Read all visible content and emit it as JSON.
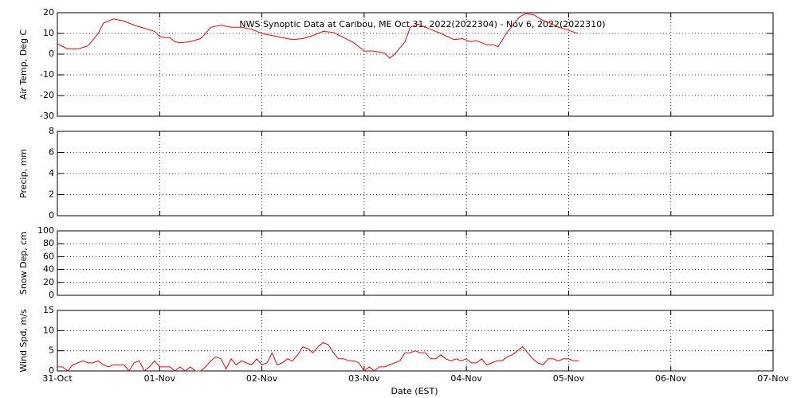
{
  "chart_data": [
    {
      "type": "line",
      "title": "NWS Synoptic Data at Caribou, ME   Oct 31, 2022(2022304) - Nov  6, 2022(2022310)",
      "ylabel": "Air Temp, Deg C",
      "ylim": [
        -30,
        20
      ],
      "yticks": [
        -30,
        -20,
        -10,
        0,
        10,
        20
      ],
      "grid": true,
      "color": "#ff0000",
      "x": [
        0,
        0.1,
        0.2,
        0.3,
        0.4,
        0.45,
        0.55,
        0.65,
        0.75,
        0.85,
        0.95,
        1.0,
        1.05,
        1.1,
        1.15,
        1.2,
        1.3,
        1.4,
        1.45,
        1.5,
        1.6,
        1.7,
        1.8,
        1.9,
        2.0,
        2.1,
        2.2,
        2.3,
        2.4,
        2.5,
        2.6,
        2.7,
        2.8,
        2.9,
        3.0,
        3.1,
        3.2,
        3.25,
        3.3,
        3.4,
        3.45,
        3.53,
        3.65,
        3.75,
        3.88,
        3.96,
        4.04,
        4.1,
        4.2,
        4.27,
        4.31,
        4.39,
        4.47,
        4.52,
        4.58,
        4.66,
        4.74,
        4.82,
        4.9,
        4.97,
        5.09
      ],
      "values": [
        5,
        2.5,
        2.5,
        4,
        10,
        15,
        17,
        16,
        14,
        12.5,
        11,
        8.5,
        8,
        8,
        6,
        5.5,
        6,
        7.5,
        10,
        13,
        14,
        13,
        13,
        12,
        10,
        9,
        8,
        7,
        7.5,
        9,
        11,
        10.5,
        8,
        5.5,
        1.5,
        1.5,
        0.5,
        -2,
        0,
        6,
        13,
        14.5,
        12,
        10,
        7,
        7.5,
        6,
        6.5,
        4.5,
        4.5,
        3.5,
        10,
        15,
        18,
        19.5,
        19,
        16.5,
        15,
        13,
        12,
        10
      ]
    },
    {
      "type": "line",
      "ylabel": "Precip, mm",
      "ylim": [
        0,
        8
      ],
      "yticks": [
        0,
        2,
        4,
        6,
        8
      ],
      "grid": true
    },
    {
      "type": "line",
      "ylabel": "Snow Dep, cm",
      "ylim": [
        0,
        100
      ],
      "yticks": [
        0,
        20,
        40,
        60,
        80,
        100
      ],
      "grid": true
    },
    {
      "type": "line",
      "ylabel": "Wind Spd, m/s",
      "ylim": [
        0,
        15
      ],
      "yticks": [
        0,
        5,
        10,
        15
      ],
      "grid": true,
      "color": "#ff0000",
      "xlabel": "Date (EST)",
      "xlim": [
        0,
        7
      ],
      "xticks": [
        {
          "value": 0,
          "label": "31-Oct"
        },
        {
          "value": 1,
          "label": "01-Nov"
        },
        {
          "value": 2,
          "label": "02-Nov"
        },
        {
          "value": 3,
          "label": "03-Nov"
        },
        {
          "value": 4,
          "label": "04-Nov"
        },
        {
          "value": 5,
          "label": "05-Nov"
        },
        {
          "value": 6,
          "label": "06-Nov"
        },
        {
          "value": 7,
          "label": "07-Nov"
        }
      ],
      "x": [
        0,
        0.05,
        0.1,
        0.15,
        0.2,
        0.25,
        0.3,
        0.35,
        0.4,
        0.45,
        0.5,
        0.55,
        0.6,
        0.65,
        0.7,
        0.75,
        0.8,
        0.85,
        0.9,
        0.95,
        1.0,
        1.05,
        1.1,
        1.15,
        1.2,
        1.25,
        1.3,
        1.35,
        1.4,
        1.45,
        1.5,
        1.55,
        1.6,
        1.65,
        1.7,
        1.75,
        1.8,
        1.85,
        1.9,
        1.95,
        2.0,
        2.05,
        2.1,
        2.15,
        2.2,
        2.25,
        2.3,
        2.35,
        2.4,
        2.45,
        2.5,
        2.55,
        2.6,
        2.65,
        2.7,
        2.75,
        2.8,
        2.85,
        2.9,
        2.95,
        3.0,
        3.05,
        3.1,
        3.15,
        3.2,
        3.25,
        3.3,
        3.35,
        3.4,
        3.45,
        3.5,
        3.55,
        3.6,
        3.65,
        3.7,
        3.75,
        3.8,
        3.85,
        3.9,
        3.95,
        4.0,
        4.05,
        4.1,
        4.15,
        4.2,
        4.25,
        4.3,
        4.35,
        4.4,
        4.45,
        4.5,
        4.55,
        4.6,
        4.65,
        4.7,
        4.75,
        4.8,
        4.85,
        4.9,
        4.95,
        5.0,
        5.05,
        5.1
      ],
      "values": [
        1,
        1,
        0,
        1.5,
        2,
        2.5,
        2,
        2,
        2.5,
        1.5,
        1,
        1.5,
        1.5,
        1.5,
        0,
        2,
        2.5,
        0,
        1,
        2.5,
        1,
        1,
        1,
        0,
        1,
        0,
        1,
        0,
        0,
        1,
        2.5,
        3.5,
        3,
        0.5,
        3,
        1.5,
        2.5,
        2,
        1.5,
        3,
        1.5,
        2,
        4.5,
        1.5,
        2,
        3,
        2.5,
        4,
        6,
        5.5,
        4.5,
        6,
        7,
        6.5,
        4.5,
        3,
        3,
        2.5,
        2.5,
        2,
        0,
        1,
        0,
        1,
        1,
        1.5,
        2,
        2.5,
        4.5,
        4.5,
        5,
        4.5,
        4.5,
        3,
        3,
        4,
        3,
        2.5,
        3,
        2.5,
        3,
        2,
        2,
        3,
        1.5,
        2,
        2.5,
        2.5,
        3.5,
        4,
        5,
        6,
        4.5,
        3,
        2,
        1.5,
        3,
        3,
        2.5,
        3,
        3,
        2.5,
        2.5
      ]
    }
  ]
}
